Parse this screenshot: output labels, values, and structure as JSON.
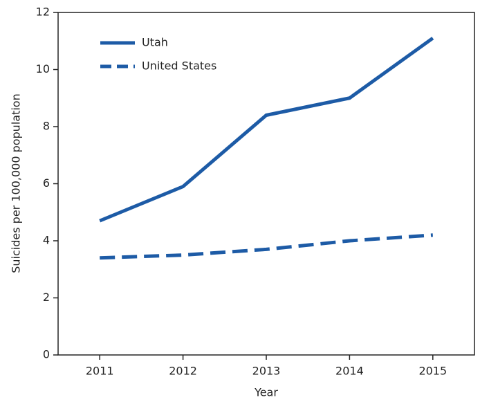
{
  "chart_data": {
    "type": "line",
    "x_label": "Year",
    "y_label": "Suicides per 100,000 population",
    "x": [
      2011,
      2012,
      2013,
      2014,
      2015
    ],
    "series": [
      {
        "name": "Utah",
        "color": "#1d5ba6",
        "line_style": "solid",
        "values": [
          4.7,
          5.9,
          8.4,
          9.0,
          11.1
        ]
      },
      {
        "name": "United States",
        "color": "#1d5ba6",
        "line_style": "dashed",
        "values": [
          3.4,
          3.5,
          3.7,
          4.0,
          4.2
        ]
      }
    ],
    "xlim": [
      2010.5,
      2015.5
    ],
    "xticks": [
      2011,
      2012,
      2013,
      2014,
      2015
    ],
    "ylim": [
      0,
      12
    ],
    "yticks": [
      0,
      2,
      4,
      6,
      8,
      10,
      12
    ],
    "grid": false,
    "legend_position": "upper-left"
  }
}
